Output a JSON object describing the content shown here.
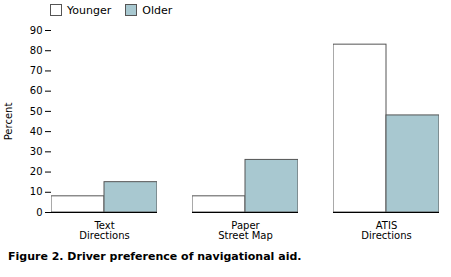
{
  "chart_data": {
    "type": "bar",
    "categories": [
      "Text\nDirections",
      "Paper\nStreet Map",
      "ATIS\nDirections"
    ],
    "series": [
      {
        "name": "Younger",
        "color": "#ffffff",
        "values": [
          8,
          8,
          83
        ]
      },
      {
        "name": "Older",
        "color": "#a8c8d0",
        "values": [
          15,
          26,
          48
        ]
      }
    ],
    "ylabel": "Percent",
    "ylim": [
      0,
      90
    ],
    "yticks": [
      0,
      10,
      20,
      30,
      40,
      50,
      60,
      70,
      80,
      90
    ],
    "legend": "upper left",
    "caption": "Figure 2. Driver preference of navigational aid."
  }
}
